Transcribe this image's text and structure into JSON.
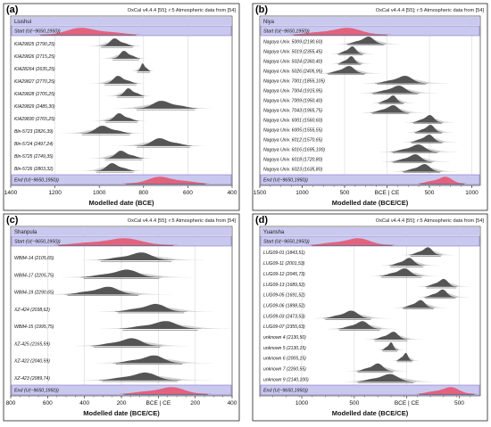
{
  "colors": {
    "start_end_fill": "#c9c9ef",
    "start_end_stroke": "#8a73c8",
    "header_fill": "#c9c9ef",
    "phase_border": "#8a73c8",
    "posterior": "#555555",
    "prior": "#cfcfcf",
    "boundary": "#e8506a",
    "frame": "#222222",
    "grid": "#d8d8d8"
  },
  "chart_data": [
    {
      "id": "a",
      "type": "oxcal-multiplot",
      "panel_label": "(a)",
      "header": "OxCal v4.4.4 [55]; r:5 Atmospheric data from [54]",
      "phase": "Liushui",
      "xlabel": "Modelled date (BCE)",
      "xlim": [
        1400,
        400
      ],
      "x_reversed": true,
      "ticks": [
        {
          "v": 1400,
          "label": "1400"
        },
        {
          "v": 1200,
          "label": "1200"
        },
        {
          "v": 1000,
          "label": "1000"
        },
        {
          "v": 800,
          "label": "800"
        },
        {
          "v": 600,
          "label": "600"
        },
        {
          "v": 400,
          "label": "400"
        }
      ],
      "start": {
        "label": "Start (U(−9650,1950))",
        "center": 1050,
        "spread": 90
      },
      "end": {
        "label": "End (U(−9650,1950))",
        "center": 700,
        "spread": 75
      },
      "rows": [
        {
          "label": "KIA29825 (2790,25)",
          "center": 920,
          "spread": 30
        },
        {
          "label": "KIA29826 (2715,25)",
          "center": 880,
          "spread": 25
        },
        {
          "label": "KIA28264 (2635,25)",
          "center": 800,
          "spread": 12
        },
        {
          "label": "KIA29827 (2770,25)",
          "center": 905,
          "spread": 30
        },
        {
          "label": "KIA29828 (2705,25)",
          "center": 860,
          "spread": 25
        },
        {
          "label": "KIA29829 (2485,30)",
          "center": 700,
          "spread": 55
        },
        {
          "label": "KIA29830 (2765,25)",
          "center": 900,
          "spread": 30
        },
        {
          "label": "Bln-5723 (2826,39)",
          "center": 970,
          "spread": 45
        },
        {
          "label": "Bln-5724 (2497,24)",
          "center": 710,
          "spread": 50
        },
        {
          "label": "Bln-5725 (2749,35)",
          "center": 890,
          "spread": 35
        },
        {
          "label": "Bln-5726 (2803,32)",
          "center": 930,
          "spread": 35
        }
      ]
    },
    {
      "id": "b",
      "type": "oxcal-multiplot",
      "panel_label": "(b)",
      "header": "OxCal v4.4.4 [55]; r:5 Atmospheric data from [54]",
      "phase": "Niya",
      "xlabel": "Modelled date (BCE/CE)",
      "xlim": [
        -1500,
        1100
      ],
      "x_reversed": false,
      "ticks": [
        {
          "v": -1500,
          "label": "1500"
        },
        {
          "v": -1000,
          "label": "1000"
        },
        {
          "v": -500,
          "label": "500"
        },
        {
          "v": 0,
          "label": "BCE | CE"
        },
        {
          "v": 500,
          "label": "500"
        },
        {
          "v": 1000,
          "label": "1000"
        }
      ],
      "start": {
        "label": "Start (U(−9650,1950))",
        "center": -550,
        "spread": 230
      },
      "end": {
        "label": "End (U(−9650,1950))",
        "center": 650,
        "spread": 110
      },
      "rows": [
        {
          "label": "Nagoya Univ. 5009 (2190,60)",
          "center": -250,
          "spread": 90
        },
        {
          "label": "Nagoya Univ. 5019 (2355,45)",
          "center": -430,
          "spread": 60
        },
        {
          "label": "Nagoya Univ. 5024 (2360,40)",
          "center": -440,
          "spread": 55
        },
        {
          "label": "Nagoya Univ. 5026 (2405,95)",
          "center": -480,
          "spread": 90
        },
        {
          "label": "Nagoya Univ. 7001 (1855,105)",
          "center": 170,
          "spread": 120
        },
        {
          "label": "Nagoya Univ. 7004 (1915,95)",
          "center": 100,
          "spread": 110
        },
        {
          "label": "Nagoya Univ. 7009 (1950,40)",
          "center": 50,
          "spread": 60
        },
        {
          "label": "Nagoya Univ. 7043 (1965,75)",
          "center": 40,
          "spread": 90
        },
        {
          "label": "Nagoya Univ. 6001 (1560,60)",
          "center": 480,
          "spread": 70
        },
        {
          "label": "Nagoya Univ. 6005 (1555,55)",
          "center": 490,
          "spread": 65
        },
        {
          "label": "Nagoya Univ. 6012 (1570,65)",
          "center": 470,
          "spread": 75
        },
        {
          "label": "Nagoya Univ. 6016 (1695,100)",
          "center": 330,
          "spread": 110
        },
        {
          "label": "Nagoya Univ. 6018 (1720,80)",
          "center": 300,
          "spread": 95
        },
        {
          "label": "Nagoya Univ. 6023 (1635,80)",
          "center": 410,
          "spread": 90
        }
      ]
    },
    {
      "id": "c",
      "type": "oxcal-multiplot",
      "panel_label": "(c)",
      "header": "OxCal v4.4.4 [55]; r:5 Atmospheric data from [54]",
      "phase": "Shanpula",
      "xlabel": "Modelled date (BCE/CE)",
      "xlim": [
        -800,
        400
      ],
      "x_reversed": false,
      "ticks": [
        {
          "v": -800,
          "label": "800"
        },
        {
          "v": -600,
          "label": "600"
        },
        {
          "v": -400,
          "label": "400"
        },
        {
          "v": -200,
          "label": "200"
        },
        {
          "v": 0,
          "label": "BCE | CE"
        },
        {
          "v": 200,
          "label": "200"
        },
        {
          "v": 400,
          "label": "400"
        }
      ],
      "start": {
        "label": "Start (U(−9650,1950))",
        "center": -230,
        "spread": 130
      },
      "end": {
        "label": "End (U(−9650,1950))",
        "center": 40,
        "spread": 95
      },
      "rows": [
        {
          "label": "WB84-14 (2105,65)",
          "center": -120,
          "spread": 80
        },
        {
          "label": "WB84-17 (2205,75)",
          "center": -200,
          "spread": 85
        },
        {
          "label": "WB84-19 (2290,65)",
          "center": -300,
          "spread": 80
        },
        {
          "label": "XZ-424 (2038,62)",
          "center": -40,
          "spread": 75
        },
        {
          "label": "WB84-15 (1995,75)",
          "center": 10,
          "spread": 85
        },
        {
          "label": "XZ-425 (2165,59)",
          "center": -170,
          "spread": 75
        },
        {
          "label": "XZ-422 (2040,59)",
          "center": -50,
          "spread": 75
        },
        {
          "label": "XZ-423 (2089,74)",
          "center": -100,
          "spread": 85
        }
      ]
    },
    {
      "id": "d",
      "type": "oxcal-multiplot",
      "panel_label": "(d)",
      "header": "OxCal v4.4.4 [55]; r:5 Atmospheric data from [54]",
      "phase": "Yuansha",
      "xlabel": "Modelled date (BCE/CE)",
      "xlim": [
        -1400,
        700
      ],
      "x_reversed": false,
      "ticks": [
        {
          "v": -1000,
          "label": "1000"
        },
        {
          "v": -500,
          "label": "500"
        },
        {
          "v": 0,
          "label": "BCE | CE"
        },
        {
          "v": 500,
          "label": "500"
        }
      ],
      "start": {
        "label": "Start (U(−9650,1950))",
        "center": -520,
        "spread": 160
      },
      "end": {
        "label": "End (U(−9650,1950))",
        "center": 380,
        "spread": 110
      },
      "rows": [
        {
          "label": "LUG09-01 (1843,51)",
          "center": 180,
          "spread": 60
        },
        {
          "label": "LUG09-11 (2001,53)",
          "center": 0,
          "spread": 65
        },
        {
          "label": "LUG09-12 (2045,73)",
          "center": -50,
          "spread": 80
        },
        {
          "label": "LUG09-13 (1689,52)",
          "center": 330,
          "spread": 60
        },
        {
          "label": "LUG09-05 (1691,52)",
          "center": 320,
          "spread": 60
        },
        {
          "label": "LUG09-06 (1898,52)",
          "center": 110,
          "spread": 60
        },
        {
          "label": "LUG09-03 (2473,53)",
          "center": -560,
          "spread": 90
        },
        {
          "label": "LUG09-07 (2355,63)",
          "center": -450,
          "spread": 80
        },
        {
          "label": "unknown 4 (2130,50)",
          "center": -150,
          "spread": 65
        },
        {
          "label": "unknown 5 (2130,15)",
          "center": -160,
          "spread": 30
        },
        {
          "label": "unknown 6 (2005,15)",
          "center": -20,
          "spread": 30
        },
        {
          "label": "unknown 7 (2260,55)",
          "center": -300,
          "spread": 70
        },
        {
          "label": "unknown 9 (2140,100)",
          "center": -200,
          "spread": 110
        }
      ]
    }
  ]
}
